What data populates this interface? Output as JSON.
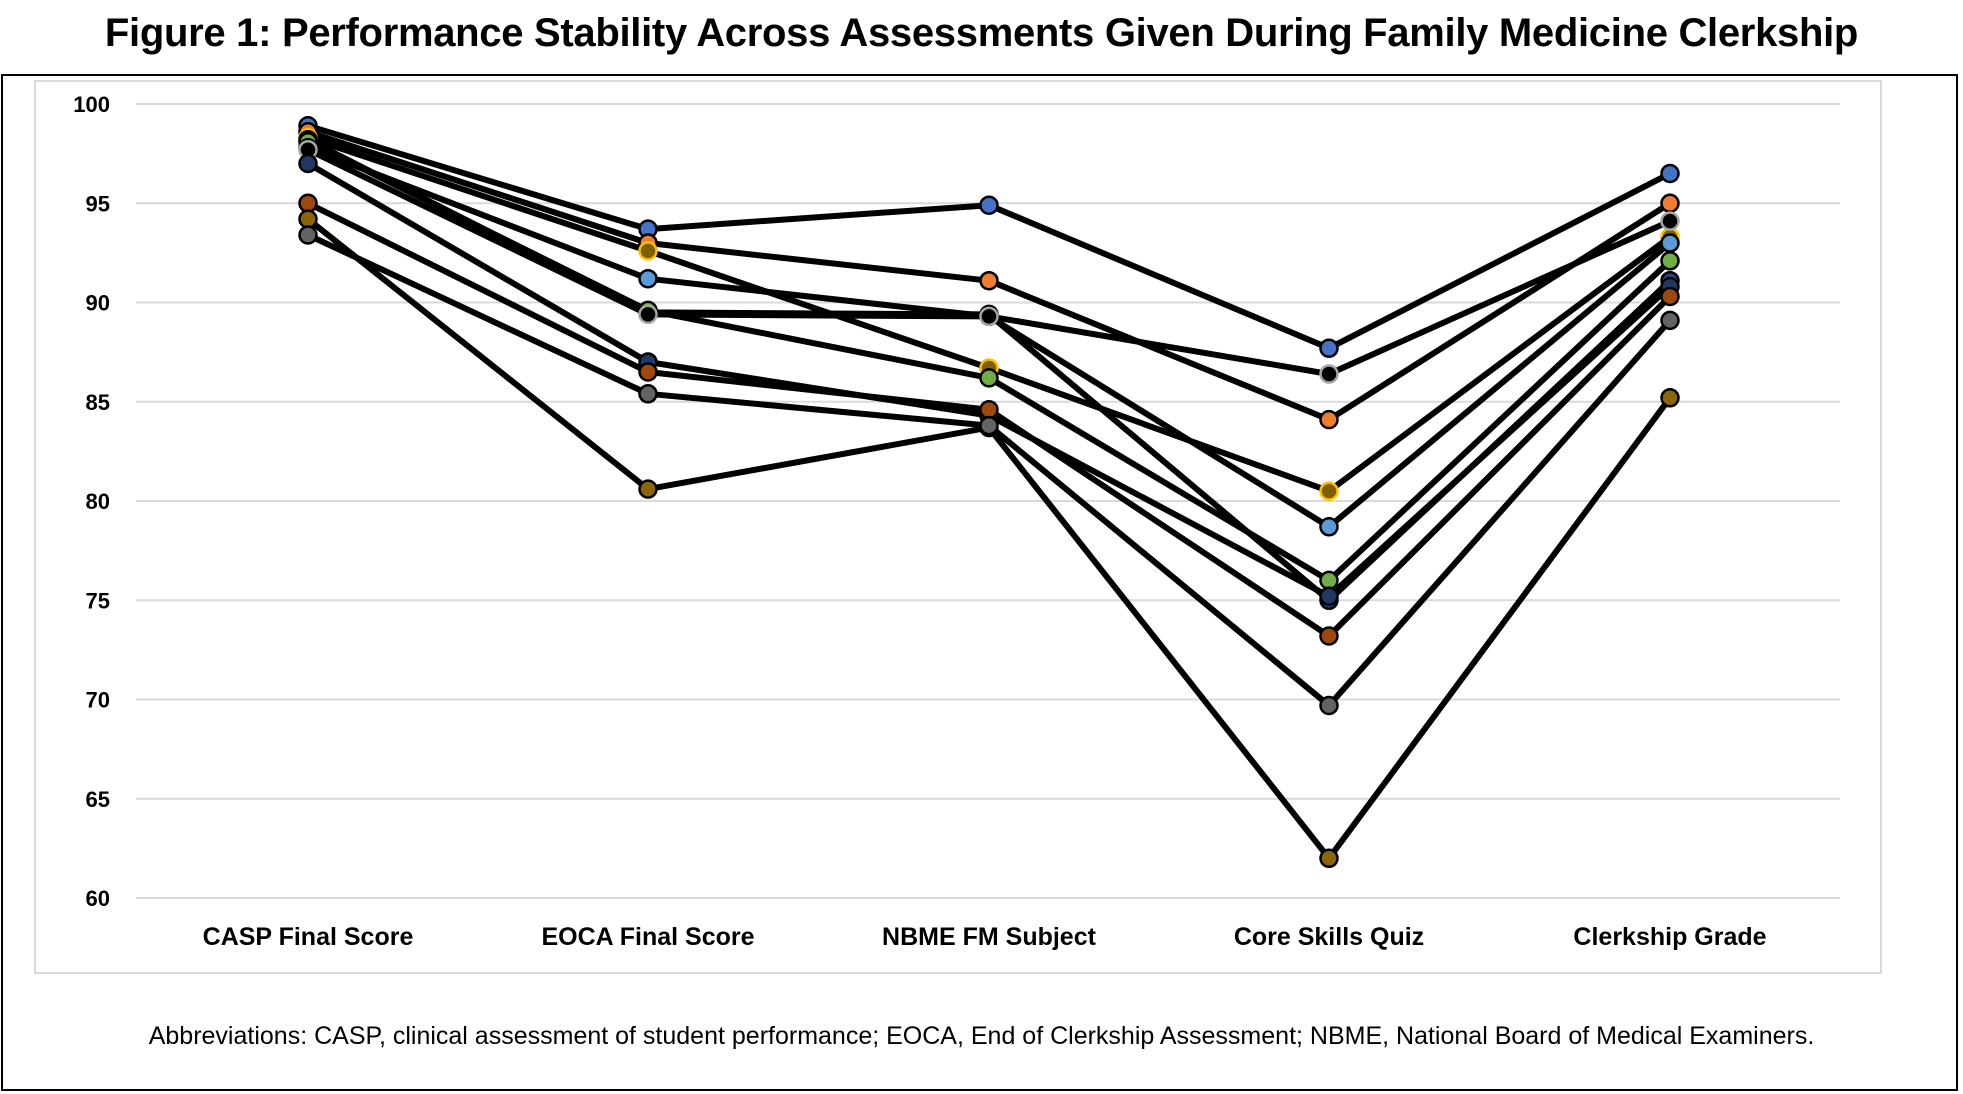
{
  "figure": {
    "title": "Figure 1: Performance Stability Across Assessments Given During Family Medicine Clerkship",
    "footnote": "Abbreviations: CASP, clinical assessment of student performance; EOCA, End of Clerkship Assessment; NBME, National Board of Medical Examiners."
  },
  "chart_data": {
    "type": "line",
    "categories": [
      "CASP Final Score",
      "EOCA Final Score",
      "NBME FM Subject",
      "Core Skills Quiz",
      "Clerkship Grade"
    ],
    "ylim": [
      60,
      100
    ],
    "yticks": [
      60,
      65,
      70,
      75,
      80,
      85,
      90,
      95,
      100
    ],
    "grid": true,
    "line_color": "#000000",
    "series": [
      {
        "values": [
          98.9,
          93.7,
          94.9,
          87.7,
          96.5
        ],
        "marker_color": "#4472c4"
      },
      {
        "values": [
          98.6,
          93.0,
          91.1,
          84.1,
          95.0
        ],
        "marker_color": "#ed7d31"
      },
      {
        "values": [
          98.3,
          92.6,
          86.7,
          80.5,
          93.3
        ],
        "marker_color": "#7f6000",
        "marker_outline": "#ffc000"
      },
      {
        "values": [
          98.2,
          89.5,
          89.4,
          75.0,
          91.1
        ],
        "marker_color": "#264478"
      },
      {
        "values": [
          98.1,
          89.6,
          86.2,
          76.0,
          92.1
        ],
        "marker_color": "#70ad47"
      },
      {
        "values": [
          97.8,
          91.2,
          89.3,
          78.7,
          93.0
        ],
        "marker_color": "#5b9bd5"
      },
      {
        "values": [
          97.7,
          89.4,
          89.3,
          86.4,
          94.1
        ],
        "marker_color": "#000000",
        "marker_outline": "#a5a5a5"
      },
      {
        "values": [
          97.0,
          87.0,
          84.3,
          75.2,
          90.8
        ],
        "marker_color": "#1f3864"
      },
      {
        "values": [
          95.0,
          86.5,
          84.6,
          73.2,
          90.3
        ],
        "marker_color": "#9e480e"
      },
      {
        "values": [
          94.2,
          80.6,
          83.7,
          62.0,
          85.2
        ],
        "marker_color": "#8b6508"
      },
      {
        "values": [
          93.4,
          85.4,
          83.8,
          69.7,
          89.1
        ],
        "marker_color": "#636363"
      }
    ]
  }
}
